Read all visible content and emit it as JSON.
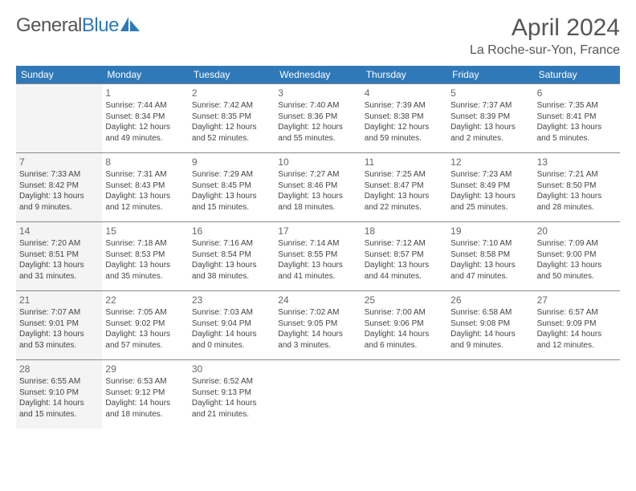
{
  "brand": {
    "part1": "General",
    "part2": "Blue"
  },
  "title": "April 2024",
  "location": "La Roche-sur-Yon, France",
  "colors": {
    "header_bg": "#2f79b9",
    "header_text": "#ffffff",
    "text": "#444444",
    "border": "#888888",
    "faded_bg": "#f4f4f4"
  },
  "weekdays": [
    "Sunday",
    "Monday",
    "Tuesday",
    "Wednesday",
    "Thursday",
    "Friday",
    "Saturday"
  ],
  "grid": {
    "cols": 7,
    "rows": 5
  },
  "days": [
    {
      "blank": true,
      "faded": true
    },
    {
      "num": "1",
      "sunrise": "Sunrise: 7:44 AM",
      "sunset": "Sunset: 8:34 PM",
      "day1": "Daylight: 12 hours",
      "day2": "and 49 minutes."
    },
    {
      "num": "2",
      "sunrise": "Sunrise: 7:42 AM",
      "sunset": "Sunset: 8:35 PM",
      "day1": "Daylight: 12 hours",
      "day2": "and 52 minutes."
    },
    {
      "num": "3",
      "sunrise": "Sunrise: 7:40 AM",
      "sunset": "Sunset: 8:36 PM",
      "day1": "Daylight: 12 hours",
      "day2": "and 55 minutes."
    },
    {
      "num": "4",
      "sunrise": "Sunrise: 7:39 AM",
      "sunset": "Sunset: 8:38 PM",
      "day1": "Daylight: 12 hours",
      "day2": "and 59 minutes."
    },
    {
      "num": "5",
      "sunrise": "Sunrise: 7:37 AM",
      "sunset": "Sunset: 8:39 PM",
      "day1": "Daylight: 13 hours",
      "day2": "and 2 minutes."
    },
    {
      "num": "6",
      "sunrise": "Sunrise: 7:35 AM",
      "sunset": "Sunset: 8:41 PM",
      "day1": "Daylight: 13 hours",
      "day2": "and 5 minutes."
    },
    {
      "num": "7",
      "faded": true,
      "sunrise": "Sunrise: 7:33 AM",
      "sunset": "Sunset: 8:42 PM",
      "day1": "Daylight: 13 hours",
      "day2": "and 9 minutes."
    },
    {
      "num": "8",
      "sunrise": "Sunrise: 7:31 AM",
      "sunset": "Sunset: 8:43 PM",
      "day1": "Daylight: 13 hours",
      "day2": "and 12 minutes."
    },
    {
      "num": "9",
      "sunrise": "Sunrise: 7:29 AM",
      "sunset": "Sunset: 8:45 PM",
      "day1": "Daylight: 13 hours",
      "day2": "and 15 minutes."
    },
    {
      "num": "10",
      "sunrise": "Sunrise: 7:27 AM",
      "sunset": "Sunset: 8:46 PM",
      "day1": "Daylight: 13 hours",
      "day2": "and 18 minutes."
    },
    {
      "num": "11",
      "sunrise": "Sunrise: 7:25 AM",
      "sunset": "Sunset: 8:47 PM",
      "day1": "Daylight: 13 hours",
      "day2": "and 22 minutes."
    },
    {
      "num": "12",
      "sunrise": "Sunrise: 7:23 AM",
      "sunset": "Sunset: 8:49 PM",
      "day1": "Daylight: 13 hours",
      "day2": "and 25 minutes."
    },
    {
      "num": "13",
      "sunrise": "Sunrise: 7:21 AM",
      "sunset": "Sunset: 8:50 PM",
      "day1": "Daylight: 13 hours",
      "day2": "and 28 minutes."
    },
    {
      "num": "14",
      "faded": true,
      "sunrise": "Sunrise: 7:20 AM",
      "sunset": "Sunset: 8:51 PM",
      "day1": "Daylight: 13 hours",
      "day2": "and 31 minutes."
    },
    {
      "num": "15",
      "sunrise": "Sunrise: 7:18 AM",
      "sunset": "Sunset: 8:53 PM",
      "day1": "Daylight: 13 hours",
      "day2": "and 35 minutes."
    },
    {
      "num": "16",
      "sunrise": "Sunrise: 7:16 AM",
      "sunset": "Sunset: 8:54 PM",
      "day1": "Daylight: 13 hours",
      "day2": "and 38 minutes."
    },
    {
      "num": "17",
      "sunrise": "Sunrise: 7:14 AM",
      "sunset": "Sunset: 8:55 PM",
      "day1": "Daylight: 13 hours",
      "day2": "and 41 minutes."
    },
    {
      "num": "18",
      "sunrise": "Sunrise: 7:12 AM",
      "sunset": "Sunset: 8:57 PM",
      "day1": "Daylight: 13 hours",
      "day2": "and 44 minutes."
    },
    {
      "num": "19",
      "sunrise": "Sunrise: 7:10 AM",
      "sunset": "Sunset: 8:58 PM",
      "day1": "Daylight: 13 hours",
      "day2": "and 47 minutes."
    },
    {
      "num": "20",
      "sunrise": "Sunrise: 7:09 AM",
      "sunset": "Sunset: 9:00 PM",
      "day1": "Daylight: 13 hours",
      "day2": "and 50 minutes."
    },
    {
      "num": "21",
      "faded": true,
      "sunrise": "Sunrise: 7:07 AM",
      "sunset": "Sunset: 9:01 PM",
      "day1": "Daylight: 13 hours",
      "day2": "and 53 minutes."
    },
    {
      "num": "22",
      "sunrise": "Sunrise: 7:05 AM",
      "sunset": "Sunset: 9:02 PM",
      "day1": "Daylight: 13 hours",
      "day2": "and 57 minutes."
    },
    {
      "num": "23",
      "sunrise": "Sunrise: 7:03 AM",
      "sunset": "Sunset: 9:04 PM",
      "day1": "Daylight: 14 hours",
      "day2": "and 0 minutes."
    },
    {
      "num": "24",
      "sunrise": "Sunrise: 7:02 AM",
      "sunset": "Sunset: 9:05 PM",
      "day1": "Daylight: 14 hours",
      "day2": "and 3 minutes."
    },
    {
      "num": "25",
      "sunrise": "Sunrise: 7:00 AM",
      "sunset": "Sunset: 9:06 PM",
      "day1": "Daylight: 14 hours",
      "day2": "and 6 minutes."
    },
    {
      "num": "26",
      "sunrise": "Sunrise: 6:58 AM",
      "sunset": "Sunset: 9:08 PM",
      "day1": "Daylight: 14 hours",
      "day2": "and 9 minutes."
    },
    {
      "num": "27",
      "sunrise": "Sunrise: 6:57 AM",
      "sunset": "Sunset: 9:09 PM",
      "day1": "Daylight: 14 hours",
      "day2": "and 12 minutes."
    },
    {
      "num": "28",
      "faded": true,
      "sunrise": "Sunrise: 6:55 AM",
      "sunset": "Sunset: 9:10 PM",
      "day1": "Daylight: 14 hours",
      "day2": "and 15 minutes."
    },
    {
      "num": "29",
      "sunrise": "Sunrise: 6:53 AM",
      "sunset": "Sunset: 9:12 PM",
      "day1": "Daylight: 14 hours",
      "day2": "and 18 minutes."
    },
    {
      "num": "30",
      "sunrise": "Sunrise: 6:52 AM",
      "sunset": "Sunset: 9:13 PM",
      "day1": "Daylight: 14 hours",
      "day2": "and 21 minutes."
    },
    {
      "blank": true
    },
    {
      "blank": true
    },
    {
      "blank": true
    },
    {
      "blank": true
    }
  ]
}
